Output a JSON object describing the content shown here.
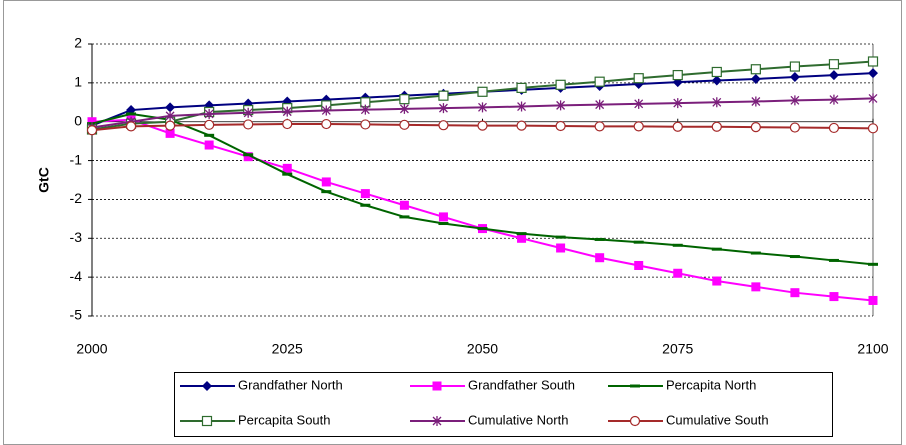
{
  "chart_data": {
    "type": "line",
    "y_label": "GtC",
    "x": [
      2000,
      2005,
      2010,
      2015,
      2020,
      2025,
      2030,
      2035,
      2040,
      2045,
      2050,
      2055,
      2060,
      2065,
      2070,
      2075,
      2080,
      2085,
      2090,
      2095,
      2100
    ],
    "xlim": [
      2000,
      2100
    ],
    "xticks": [
      2000,
      2025,
      2050,
      2075,
      2100
    ],
    "ylim": [
      -5,
      2
    ],
    "yticks": [
      2,
      1,
      0,
      -1,
      -2,
      -3,
      -4,
      -5
    ],
    "grid": true,
    "legend": "bottom",
    "series": [
      {
        "name": "Grandfather North",
        "color": "#000080",
        "marker": "diamond",
        "values": [
          -0.1,
          0.3,
          0.37,
          0.42,
          0.47,
          0.52,
          0.57,
          0.62,
          0.67,
          0.72,
          0.77,
          0.82,
          0.87,
          0.92,
          0.97,
          1.02,
          1.06,
          1.1,
          1.15,
          1.2,
          1.25
        ]
      },
      {
        "name": "Grandfather South",
        "color": "#ff00ff",
        "marker": "square",
        "values": [
          0,
          0.05,
          -0.3,
          -0.6,
          -0.9,
          -1.2,
          -1.55,
          -1.85,
          -2.15,
          -2.45,
          -2.75,
          -3.0,
          -3.25,
          -3.5,
          -3.7,
          -3.9,
          -4.1,
          -4.25,
          -4.4,
          -4.5,
          -4.6
        ]
      },
      {
        "name": "Percapita North",
        "color": "#006400",
        "marker": "dash",
        "values": [
          -0.05,
          0.2,
          0.05,
          -0.35,
          -0.85,
          -1.35,
          -1.8,
          -2.15,
          -2.45,
          -2.62,
          -2.75,
          -2.88,
          -2.97,
          -3.03,
          -3.1,
          -3.18,
          -3.28,
          -3.38,
          -3.47,
          -3.57,
          -3.67
        ]
      },
      {
        "name": "Percapita South",
        "color": "#2e6b2e",
        "marker": "square-open",
        "values": [
          -0.2,
          -0.05,
          0.0,
          0.25,
          0.3,
          0.35,
          0.42,
          0.5,
          0.58,
          0.67,
          0.77,
          0.87,
          0.95,
          1.03,
          1.12,
          1.2,
          1.28,
          1.35,
          1.42,
          1.48,
          1.55
        ]
      },
      {
        "name": "Cumulative North",
        "color": "#7b1f7b",
        "marker": "asterisk",
        "values": [
          -0.15,
          0.0,
          0.15,
          0.2,
          0.23,
          0.26,
          0.29,
          0.31,
          0.33,
          0.35,
          0.37,
          0.39,
          0.42,
          0.44,
          0.46,
          0.48,
          0.5,
          0.52,
          0.55,
          0.57,
          0.6
        ]
      },
      {
        "name": "Cumulative South",
        "color": "#a52a2a",
        "marker": "circle-open",
        "values": [
          -0.22,
          -0.12,
          -0.1,
          -0.08,
          -0.07,
          -0.06,
          -0.06,
          -0.07,
          -0.08,
          -0.09,
          -0.1,
          -0.1,
          -0.11,
          -0.12,
          -0.12,
          -0.13,
          -0.13,
          -0.14,
          -0.15,
          -0.16,
          -0.17
        ]
      }
    ]
  }
}
